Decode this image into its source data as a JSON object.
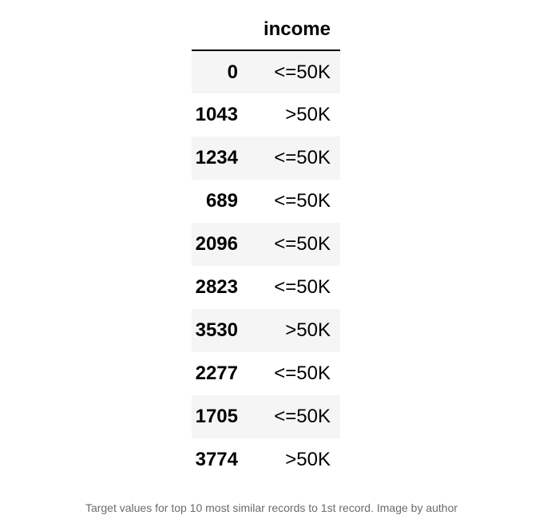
{
  "table": {
    "index_header": "",
    "column_header": "income",
    "rows": [
      {
        "index": "0",
        "income": "<=50K"
      },
      {
        "index": "1043",
        "income": ">50K"
      },
      {
        "index": "1234",
        "income": "<=50K"
      },
      {
        "index": "689",
        "income": "<=50K"
      },
      {
        "index": "2096",
        "income": "<=50K"
      },
      {
        "index": "2823",
        "income": "<=50K"
      },
      {
        "index": "3530",
        "income": ">50K"
      },
      {
        "index": "2277",
        "income": "<=50K"
      },
      {
        "index": "1705",
        "income": "<=50K"
      },
      {
        "index": "3774",
        "income": ">50K"
      }
    ]
  },
  "caption": "Target values for top 10 most similar records to 1st record. Image by author"
}
